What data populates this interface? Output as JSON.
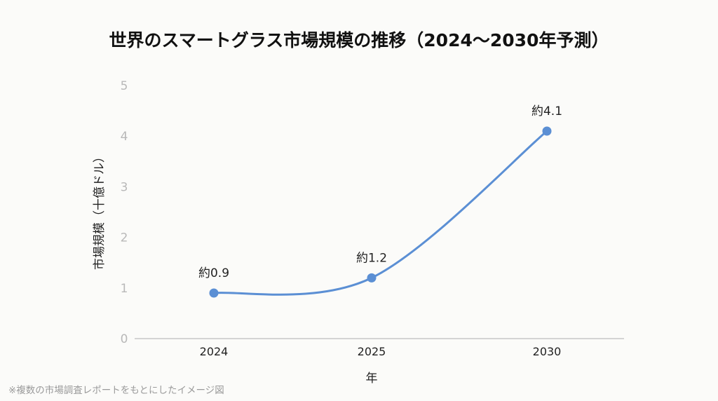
{
  "chart_data": {
    "type": "line",
    "title": "世界のスマートグラス市場規模の推移（2024〜2030年予測）",
    "xlabel": "年",
    "ylabel": "市場規模（十億ドル）",
    "categories": [
      "2024",
      "2025",
      "2030"
    ],
    "series": [
      {
        "name": "市場規模",
        "values": [
          0.9,
          1.2,
          4.1
        ],
        "labels": [
          "約0.9",
          "約1.2",
          "約4.1"
        ],
        "color": "#5b8fd4"
      }
    ],
    "ylim": [
      0,
      5
    ],
    "yticks": [
      "0",
      "1",
      "2",
      "3",
      "4",
      "5"
    ],
    "grid": false,
    "footnote": "※複数の市場調査レポートをもとにしたイメージ図"
  }
}
